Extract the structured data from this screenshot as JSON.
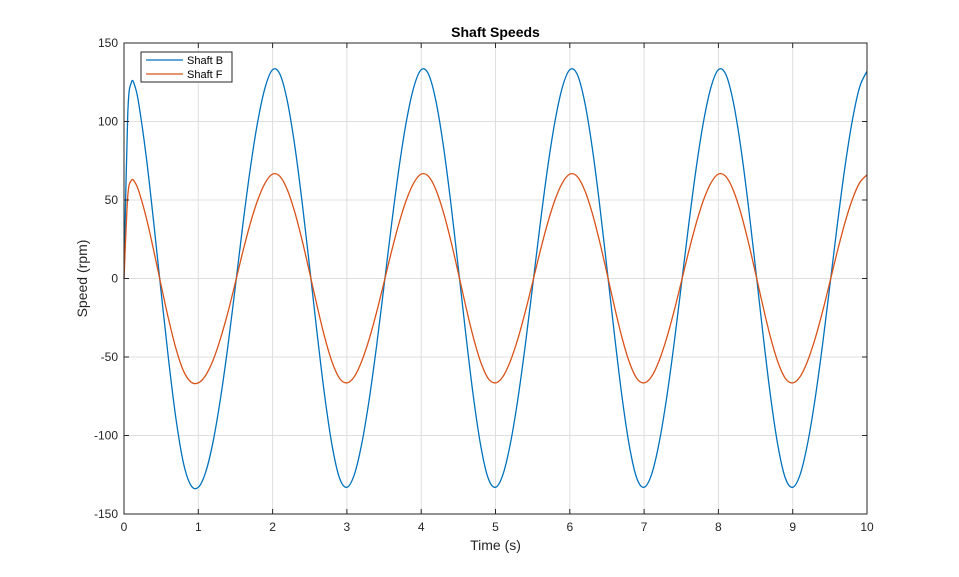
{
  "chart_data": {
    "type": "line",
    "title": "Shaft Speeds",
    "xlabel": "Time (s)",
    "ylabel": "Speed (rpm)",
    "xlim": [
      0,
      10
    ],
    "ylim": [
      -150,
      150
    ],
    "xticks": [
      0,
      1,
      2,
      3,
      4,
      5,
      6,
      7,
      8,
      9,
      10
    ],
    "yticks": [
      -150,
      -100,
      -50,
      0,
      50,
      100,
      150
    ],
    "grid": true,
    "legend_position": "top-left",
    "series": [
      {
        "name": "Shaft B",
        "color": "#0072BD",
        "x": [
          0,
          0.05,
          0.1,
          0.15,
          0.2,
          0.3,
          0.4,
          0.5,
          0.6,
          0.7,
          0.8,
          0.9,
          1.0,
          1.1,
          1.2,
          1.3,
          1.4,
          1.5,
          1.6,
          1.7,
          1.8,
          1.9,
          2.0,
          2.1,
          2.2,
          2.3,
          2.4,
          2.5,
          2.6,
          2.7,
          2.8,
          2.9,
          3.0,
          3.1,
          3.2,
          3.3,
          3.4,
          3.5,
          3.6,
          3.7,
          3.8,
          3.9,
          4.0,
          4.1,
          4.2,
          4.3,
          4.4,
          4.5,
          4.6,
          4.7,
          4.8,
          4.9,
          5.0,
          5.1,
          5.2,
          5.3,
          5.4,
          5.5,
          5.6,
          5.7,
          5.8,
          5.9,
          6.0,
          6.1,
          6.2,
          6.3,
          6.4,
          6.5,
          6.6,
          6.7,
          6.8,
          6.9,
          7.0,
          7.1,
          7.2,
          7.3,
          7.4,
          7.5,
          7.6,
          7.7,
          7.8,
          7.9,
          8.0,
          8.1,
          8.2,
          8.3,
          8.4,
          8.5,
          8.6,
          8.7,
          8.8,
          8.9,
          9.0,
          9.1,
          9.2,
          9.3,
          9.4,
          9.5,
          9.6,
          9.7,
          9.8,
          9.9,
          10.0
        ],
        "y": [
          0,
          104,
          125,
          122,
          111,
          77.3,
          35.6,
          -8.8,
          -51.8,
          -89.6,
          -117.5,
          -131.7,
          -133,
          -123.2,
          -103.7,
          -76,
          -42.5,
          -4.6,
          34.4,
          70.1,
          100,
          121.8,
          133,
          130,
          112.6,
          84,
          47.6,
          6.5,
          -35.4,
          -74.4,
          -106.2,
          -127,
          -133,
          -124.9,
          -105.2,
          -77.1,
          -42.8,
          -4.6,
          34.1,
          70,
          100,
          121.8,
          133,
          130,
          112.6,
          84,
          47.6,
          6.5,
          -35.4,
          -74.4,
          -106.2,
          -127,
          -133,
          -124.9,
          -105.2,
          -77.1,
          -42.8,
          -4.6,
          34.1,
          70,
          100,
          121.8,
          133,
          130,
          112.6,
          84,
          47.6,
          6.5,
          -35.4,
          -74.4,
          -106.2,
          -127,
          -133,
          -124.9,
          -105.2,
          -77.1,
          -42.8,
          -4.6,
          34.1,
          70,
          100,
          121.8,
          133,
          130,
          112.6,
          84,
          47.6,
          6.5,
          -35.4,
          -74.4,
          -106.2,
          -127,
          -133,
          -124.9,
          -105.2,
          -77.1,
          -42.8,
          -4.6,
          34.1,
          70,
          100,
          121.8,
          132
        ]
      },
      {
        "name": "Shaft F",
        "color": "#D95319",
        "x": [
          0,
          0.05,
          0.1,
          0.15,
          0.2,
          0.3,
          0.4,
          0.5,
          0.6,
          0.7,
          0.8,
          0.9,
          1.0,
          1.1,
          1.2,
          1.3,
          1.4,
          1.5,
          1.6,
          1.7,
          1.8,
          1.9,
          2.0,
          2.1,
          2.2,
          2.3,
          2.4,
          2.5,
          2.6,
          2.7,
          2.8,
          2.9,
          3.0,
          3.1,
          3.2,
          3.3,
          3.4,
          3.5,
          3.6,
          3.7,
          3.8,
          3.9,
          4.0,
          4.1,
          4.2,
          4.3,
          4.4,
          4.5,
          4.6,
          4.7,
          4.8,
          4.9,
          5.0,
          5.1,
          5.2,
          5.3,
          5.4,
          5.5,
          5.6,
          5.7,
          5.8,
          5.9,
          6.0,
          6.1,
          6.2,
          6.3,
          6.4,
          6.5,
          6.6,
          6.7,
          6.8,
          6.9,
          7.0,
          7.1,
          7.2,
          7.3,
          7.4,
          7.5,
          7.6,
          7.7,
          7.8,
          7.9,
          8.0,
          8.1,
          8.2,
          8.3,
          8.4,
          8.5,
          8.6,
          8.7,
          8.8,
          8.9,
          9.0,
          9.1,
          9.2,
          9.3,
          9.4,
          9.5,
          9.6,
          9.7,
          9.8,
          9.9,
          10.0
        ],
        "y": [
          0,
          52,
          62.5,
          61,
          55.5,
          38.7,
          17.8,
          -4.4,
          -25.9,
          -44.8,
          -58.8,
          -65.9,
          -66.5,
          -61.6,
          -51.9,
          -38,
          -21.3,
          -2.3,
          17.2,
          35.1,
          50,
          60.9,
          66.5,
          65,
          56.3,
          42,
          23.8,
          3.3,
          -17.7,
          -37.2,
          -53.1,
          -63.5,
          -66.5,
          -62.5,
          -52.6,
          -38.6,
          -21.4,
          -2.3,
          17.1,
          35,
          50,
          60.9,
          66.5,
          65,
          56.3,
          42,
          23.8,
          3.3,
          -17.7,
          -37.2,
          -53.1,
          -63.5,
          -66.5,
          -62.5,
          -52.6,
          -38.6,
          -21.4,
          -2.3,
          17.1,
          35,
          50,
          60.9,
          66.5,
          65,
          56.3,
          42,
          23.8,
          3.3,
          -17.7,
          -37.2,
          -53.1,
          -63.5,
          -66.5,
          -62.5,
          -52.6,
          -38.6,
          -21.4,
          -2.3,
          17.1,
          35,
          50,
          60.9,
          66.5,
          65,
          56.3,
          42,
          23.8,
          3.3,
          -17.7,
          -37.2,
          -53.1,
          -63.5,
          -66.5,
          -62.5,
          -52.6,
          -38.6,
          -21.4,
          -2.3,
          17.1,
          35,
          50,
          60.9,
          66
        ]
      }
    ]
  }
}
